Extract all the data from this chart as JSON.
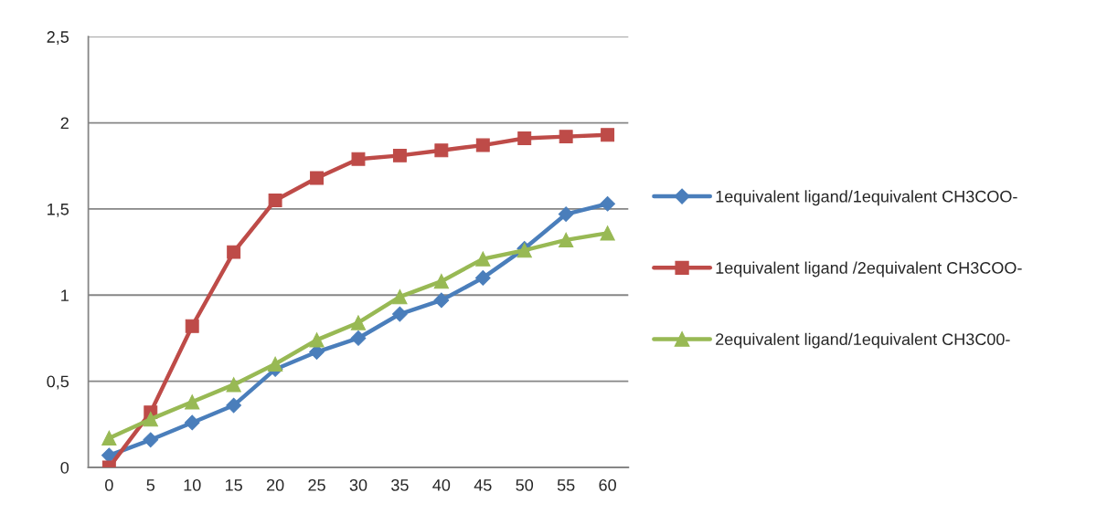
{
  "chart_data": {
    "type": "line",
    "categories": [
      "0",
      "5",
      "10",
      "15",
      "20",
      "25",
      "30",
      "35",
      "40",
      "45",
      "50",
      "55",
      "60"
    ],
    "ylim": [
      0,
      2.5
    ],
    "yticks": [
      0,
      {
        "value": 0.5,
        "label": "0,5"
      },
      1,
      {
        "value": 1.5,
        "label": "1,5"
      },
      2,
      {
        "value": 2.5,
        "label": "2,5"
      }
    ],
    "grid": "y",
    "legend": "right",
    "line_style": "solid",
    "series": [
      {
        "name": "1equivalent ligand/1equivalent CH3COO-",
        "color": "#4a7ebb",
        "marker": "diamond",
        "values": [
          0.07,
          0.16,
          0.26,
          0.36,
          0.57,
          0.67,
          0.75,
          0.89,
          0.97,
          1.1,
          1.27,
          1.47,
          1.53
        ]
      },
      {
        "name": "1equivalent ligand /2equivalent CH3COO-",
        "color": "#be4b48",
        "marker": "square",
        "values": [
          0,
          0.32,
          0.82,
          1.25,
          1.55,
          1.68,
          1.79,
          1.81,
          1.84,
          1.87,
          1.91,
          1.92,
          1.93
        ]
      },
      {
        "name": "2equivalent ligand/1equivalent CH3C00-",
        "color": "#98b954",
        "marker": "triangle",
        "values": [
          0.17,
          0.28,
          0.38,
          0.48,
          0.6,
          0.74,
          0.84,
          0.99,
          1.08,
          1.21,
          1.26,
          1.32,
          1.36
        ]
      }
    ]
  }
}
